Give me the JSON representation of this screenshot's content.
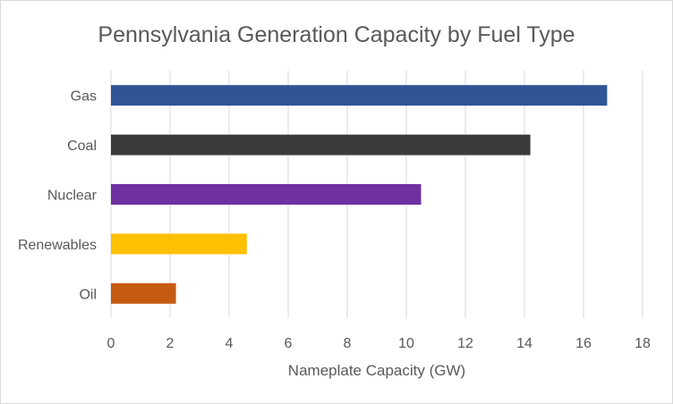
{
  "chart_data": {
    "type": "bar",
    "orientation": "horizontal",
    "title": "Pennsylvania Generation Capacity by Fuel Type",
    "xlabel": "Nameplate Capacity (GW)",
    "ylabel": "",
    "categories": [
      "Gas",
      "Coal",
      "Nuclear",
      "Renewables",
      "Oil"
    ],
    "values": [
      16.8,
      14.2,
      10.5,
      4.6,
      2.2
    ],
    "colors": [
      "#2f5597",
      "#3b3b3b",
      "#7030a0",
      "#ffc000",
      "#c55a11"
    ],
    "xlim": [
      0,
      18
    ],
    "xticks": [
      0,
      2,
      4,
      6,
      8,
      10,
      12,
      14,
      16,
      18
    ],
    "grid": "vertical",
    "legend": "none"
  }
}
